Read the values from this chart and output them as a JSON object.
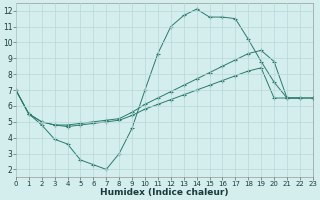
{
  "xlabel": "Humidex (Indice chaleur)",
  "bg_color": "#d4eeee",
  "grid_color": "#b8d8d8",
  "line_color": "#2a7a6a",
  "xlim": [
    0,
    23
  ],
  "ylim": [
    1.5,
    12.5
  ],
  "xticks": [
    0,
    1,
    2,
    3,
    4,
    5,
    6,
    7,
    8,
    9,
    10,
    11,
    12,
    13,
    14,
    15,
    16,
    17,
    18,
    19,
    20,
    21,
    22,
    23
  ],
  "yticks": [
    2,
    3,
    4,
    5,
    6,
    7,
    8,
    9,
    10,
    11,
    12
  ],
  "curve1_x": [
    0,
    1,
    2,
    3,
    4,
    5,
    6,
    7,
    8,
    9,
    10,
    11,
    12,
    13,
    14,
    15,
    16,
    17,
    18,
    19,
    20,
    21,
    22
  ],
  "curve1_y": [
    7.0,
    5.5,
    4.8,
    3.9,
    3.6,
    2.6,
    2.3,
    2.0,
    3.0,
    4.6,
    7.0,
    9.3,
    11.0,
    11.7,
    12.1,
    11.6,
    11.6,
    11.5,
    10.2,
    8.8,
    7.5,
    6.5,
    6.5
  ],
  "curve2_x": [
    0,
    1,
    2,
    3,
    4,
    5,
    6,
    7,
    8,
    9,
    10,
    11,
    12,
    13,
    14,
    15,
    16,
    17,
    18,
    19,
    20,
    21,
    22,
    23
  ],
  "curve2_y": [
    7.0,
    5.5,
    5.0,
    4.8,
    4.8,
    4.9,
    5.0,
    5.1,
    5.2,
    5.6,
    6.1,
    6.5,
    6.9,
    7.3,
    7.7,
    8.1,
    8.5,
    8.9,
    9.3,
    9.5,
    8.8,
    6.5,
    6.5,
    6.5
  ],
  "curve3_x": [
    0,
    1,
    2,
    3,
    4,
    5,
    6,
    7,
    8,
    9,
    10,
    11,
    12,
    13,
    14,
    15,
    16,
    17,
    18,
    19,
    20,
    21,
    22,
    23
  ],
  "curve3_y": [
    7.0,
    5.5,
    5.0,
    4.8,
    4.7,
    4.8,
    4.9,
    5.0,
    5.1,
    5.4,
    5.8,
    6.1,
    6.4,
    6.7,
    7.0,
    7.3,
    7.6,
    7.9,
    8.2,
    8.4,
    6.5,
    6.5,
    6.5,
    6.5
  ]
}
